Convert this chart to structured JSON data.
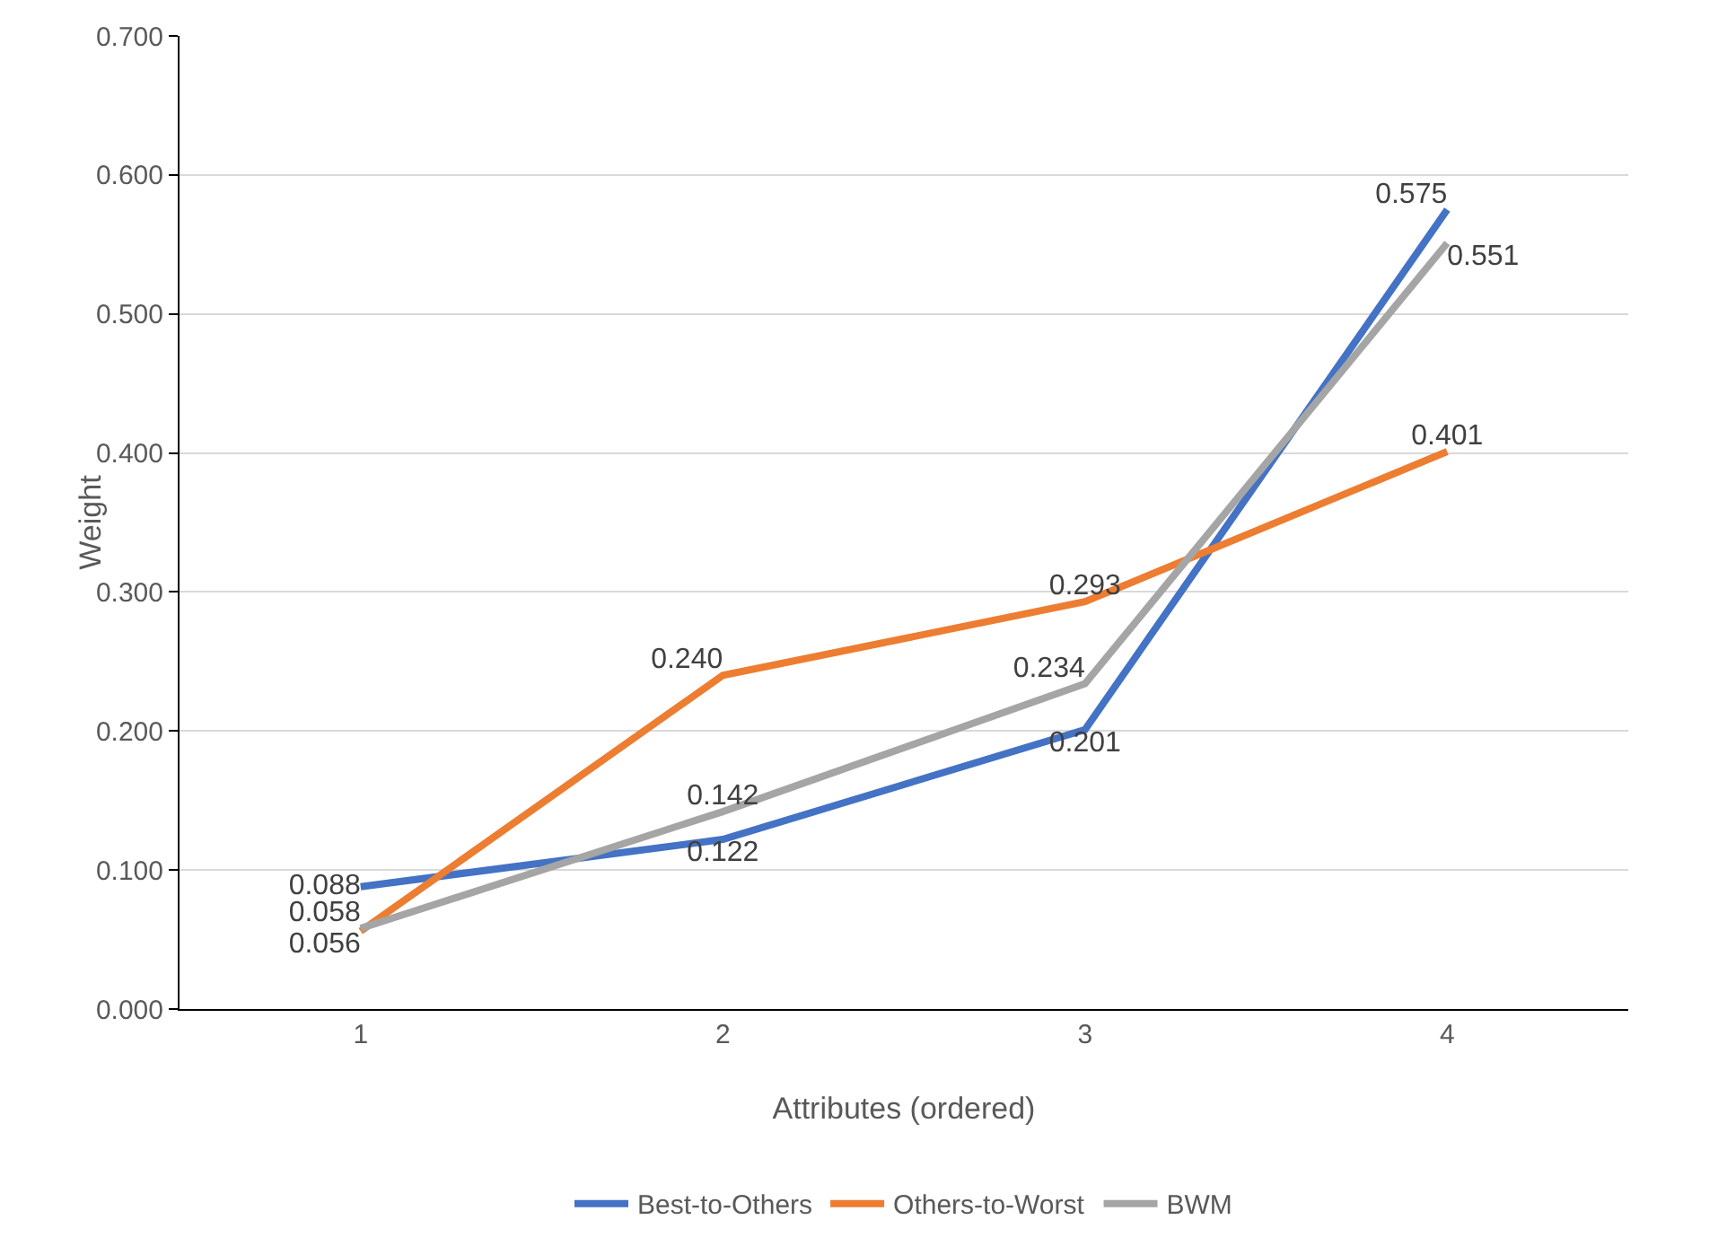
{
  "chart_data": {
    "type": "line",
    "xlabel": "Attributes (ordered)",
    "ylabel": "Weight",
    "categories": [
      "1",
      "2",
      "3",
      "4"
    ],
    "series": [
      {
        "name": "Best-to-Others",
        "color": "#4472c4",
        "values": [
          0.088,
          0.122,
          0.201,
          0.575
        ],
        "value_labels": [
          "0.088",
          "0.122",
          "0.201",
          "0.575"
        ]
      },
      {
        "name": "Others-to-Worst",
        "color": "#ed7d31",
        "values": [
          0.056,
          0.24,
          0.293,
          0.401
        ],
        "value_labels": [
          "0.056",
          "0.240",
          "0.293",
          "0.401"
        ]
      },
      {
        "name": "BWM",
        "color": "#a5a5a5",
        "values": [
          0.058,
          0.142,
          0.234,
          0.551
        ],
        "value_labels": [
          "0.058",
          "0.142",
          "0.234",
          "0.551"
        ]
      }
    ],
    "ylim": [
      0,
      0.7
    ],
    "yticks": [
      {
        "value": 0,
        "label": "0.000"
      },
      {
        "value": 0.1,
        "label": "0.100"
      },
      {
        "value": 0.2,
        "label": "0.200"
      },
      {
        "value": 0.3,
        "label": "0.300"
      },
      {
        "value": 0.4,
        "label": "0.400"
      },
      {
        "value": 0.5,
        "label": "0.500"
      },
      {
        "value": 0.6,
        "label": "0.600"
      },
      {
        "value": 0.7,
        "label": "0.700"
      }
    ],
    "grid": "y",
    "legend": "bottom",
    "marker": "none",
    "line_style": "solid"
  }
}
